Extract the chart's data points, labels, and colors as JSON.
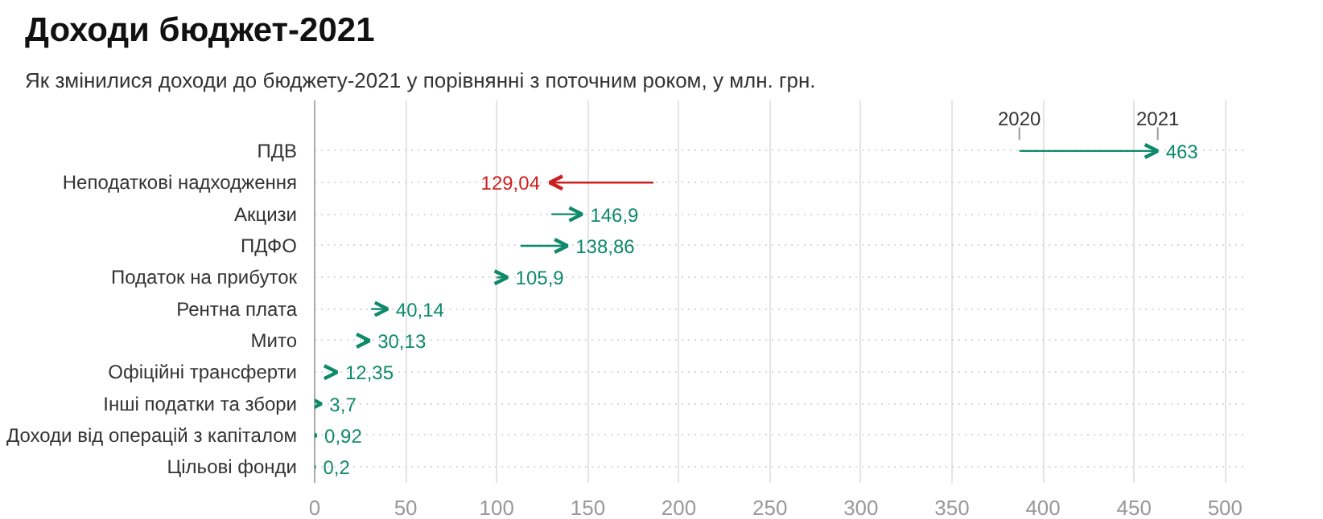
{
  "chart_data": {
    "type": "bar",
    "orientation": "horizontal",
    "title": "Доходи бюджет-2021",
    "subtitle": "Як змінилися доходи до бюджету-2021 у порівнянні з поточним роком, у млн. грн.",
    "categories": [
      "ПДВ",
      "Неподаткові надходження",
      "Акцизи",
      "ПДФО",
      "Податок на прибуток",
      "Рентна плата",
      "Мито",
      "Офіційні трансферти",
      "Інші податки та збори",
      "Доходи від операцій з капіталом",
      "Цільові фонди"
    ],
    "base": [
      387,
      186,
      130,
      113,
      100,
      31,
      27,
      10,
      2.5,
      0.5,
      0.1
    ],
    "values": [
      76,
      -56.96,
      16.9,
      25.86,
      5.9,
      9.14,
      3.13,
      2.35,
      1.2,
      0.42,
      0.1
    ],
    "colors": [
      "#0e8a6b",
      "#cc1f1f",
      "#0e8a6b",
      "#0e8a6b",
      "#0e8a6b",
      "#0e8a6b",
      "#0e8a6b",
      "#0e8a6b",
      "#0e8a6b",
      "#0e8a6b",
      "#0e8a6b"
    ],
    "value_labels": [
      "463",
      "129,04",
      "146,9",
      "138,86",
      "105,9",
      "40,14",
      "30,13",
      "12,35",
      "3,7",
      "0,92",
      "0,2"
    ],
    "annotations": [
      "2020",
      "2021"
    ],
    "xlim": [
      0,
      510
    ],
    "xticks": [
      0,
      50,
      100,
      150,
      200,
      250,
      300,
      350,
      400,
      450,
      500
    ],
    "grid": true
  }
}
